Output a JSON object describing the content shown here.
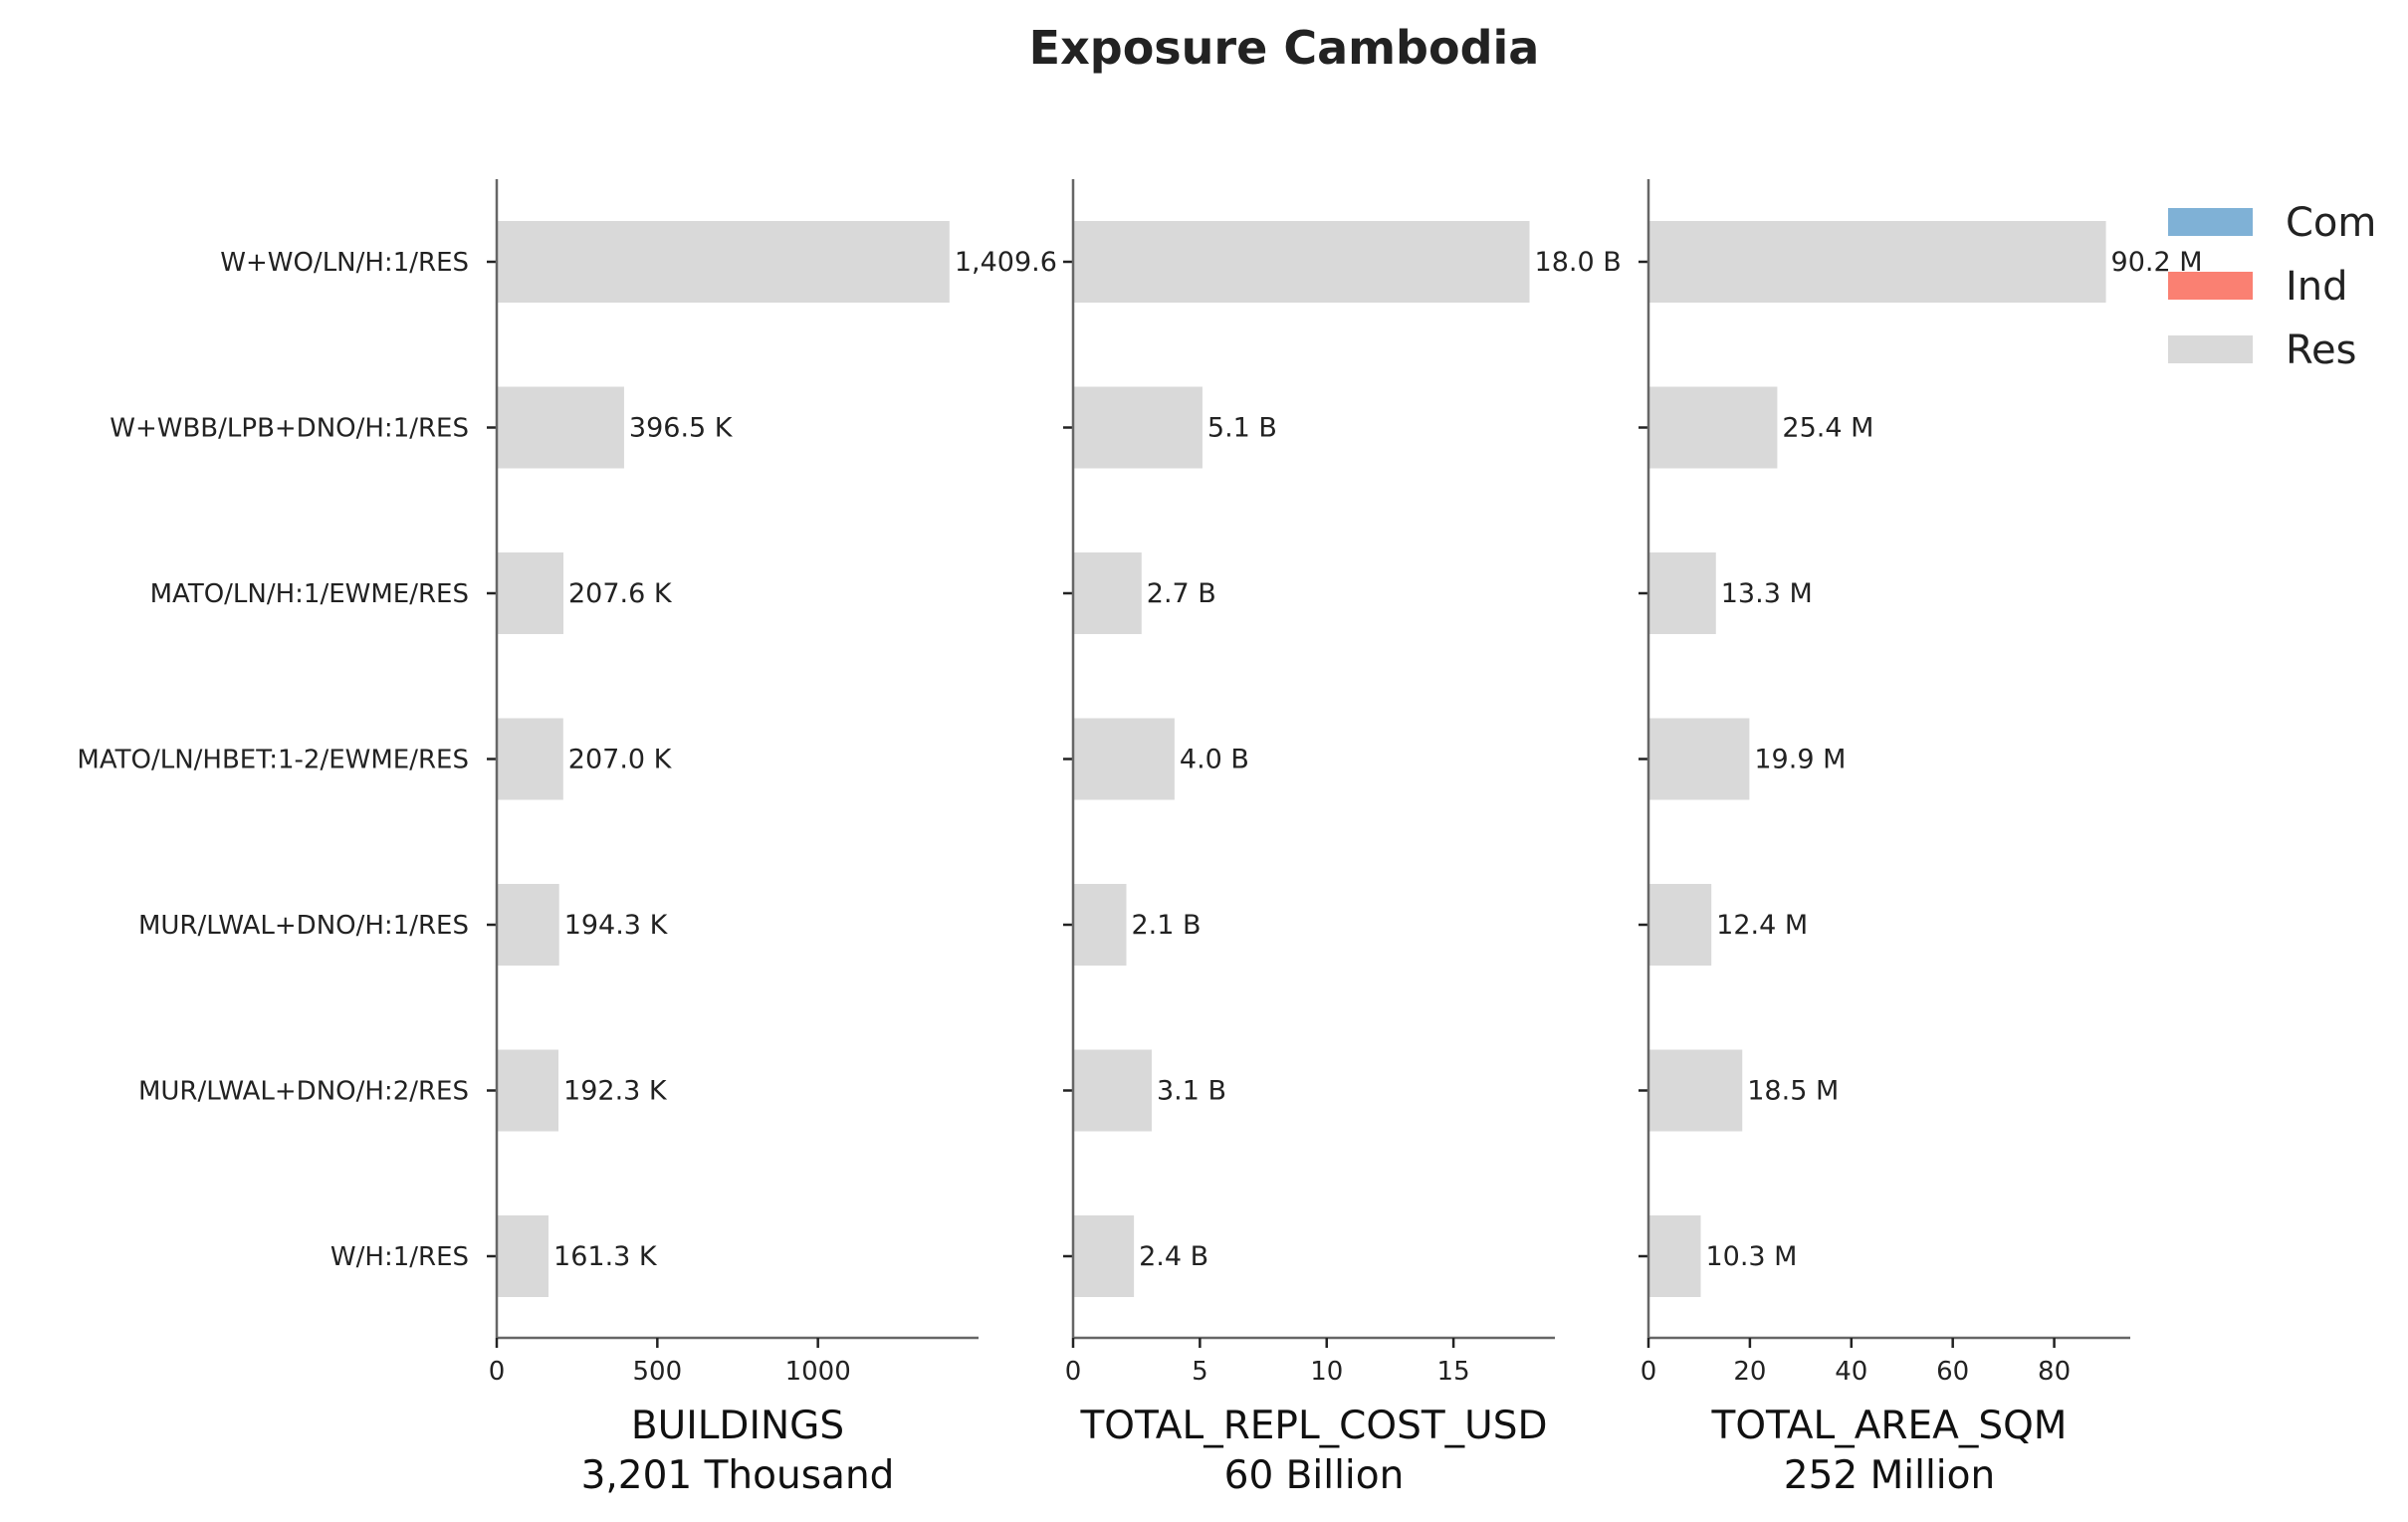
{
  "title": "Exposure Cambodia",
  "colors": {
    "Com": "#7fb1d6",
    "Ind": "#fa8072",
    "Res": "#d9d9d9",
    "axis": "#666666",
    "text": "#222222"
  },
  "legend": [
    {
      "label": "Com",
      "color": "#7fb1d6"
    },
    {
      "label": "Ind",
      "color": "#fa8072"
    },
    {
      "label": "Res",
      "color": "#d9d9d9"
    }
  ],
  "chart_data": [
    {
      "type": "bar",
      "orientation": "horizontal",
      "categories": [
        "W+WO/LN/H:1/RES",
        "W+WBB/LPB+DNO/H:1/RES",
        "MATO/LN/H:1/EWME/RES",
        "MATO/LN/HBET:1-2/EWME/RES",
        "MUR/LWAL+DNO/H:1/RES",
        "MUR/LWAL+DNO/H:2/RES",
        "W/H:1/RES"
      ],
      "series": [
        {
          "name": "Res",
          "values": [
            1409.6,
            396.5,
            207.6,
            207.0,
            194.3,
            192.3,
            161.3
          ]
        }
      ],
      "data_labels": [
        "1,409.6",
        "396.5 K",
        "207.6 K",
        "207.0 K",
        "194.3 K",
        "192.3 K",
        "161.3 K"
      ],
      "xlabel": "BUILDINGS",
      "xlabel_sub": "3,201 Thousand",
      "xlim": [
        0,
        1500
      ],
      "xticks": [
        0,
        500,
        1000
      ]
    },
    {
      "type": "bar",
      "orientation": "horizontal",
      "categories": [
        "W+WO/LN/H:1/RES",
        "W+WBB/LPB+DNO/H:1/RES",
        "MATO/LN/H:1/EWME/RES",
        "MATO/LN/HBET:1-2/EWME/RES",
        "MUR/LWAL+DNO/H:1/RES",
        "MUR/LWAL+DNO/H:2/RES",
        "W/H:1/RES"
      ],
      "series": [
        {
          "name": "Res",
          "values": [
            18.0,
            5.1,
            2.7,
            4.0,
            2.1,
            3.1,
            2.4
          ]
        }
      ],
      "data_labels": [
        "18.0 B",
        "5.1 B",
        "2.7 B",
        "4.0 B",
        "2.1 B",
        "3.1 B",
        "2.4 B"
      ],
      "xlabel": "TOTAL_REPL_COST_USD",
      "xlabel_sub": "60 Billion",
      "xlim": [
        0,
        19
      ],
      "xticks": [
        0,
        5,
        10,
        15
      ]
    },
    {
      "type": "bar",
      "orientation": "horizontal",
      "categories": [
        "W+WO/LN/H:1/RES",
        "W+WBB/LPB+DNO/H:1/RES",
        "MATO/LN/H:1/EWME/RES",
        "MATO/LN/HBET:1-2/EWME/RES",
        "MUR/LWAL+DNO/H:1/RES",
        "MUR/LWAL+DNO/H:2/RES",
        "W/H:1/RES"
      ],
      "series": [
        {
          "name": "Res",
          "values": [
            90.2,
            25.4,
            13.3,
            19.9,
            12.4,
            18.5,
            10.3
          ]
        }
      ],
      "data_labels": [
        "90.2 M",
        "25.4 M",
        "13.3 M",
        "19.9 M",
        "12.4 M",
        "18.5 M",
        "10.3 M"
      ],
      "xlabel": "TOTAL_AREA_SQM",
      "xlabel_sub": "252 Million",
      "xlim": [
        0,
        95
      ],
      "xticks": [
        0,
        20,
        40,
        60,
        80
      ]
    }
  ]
}
